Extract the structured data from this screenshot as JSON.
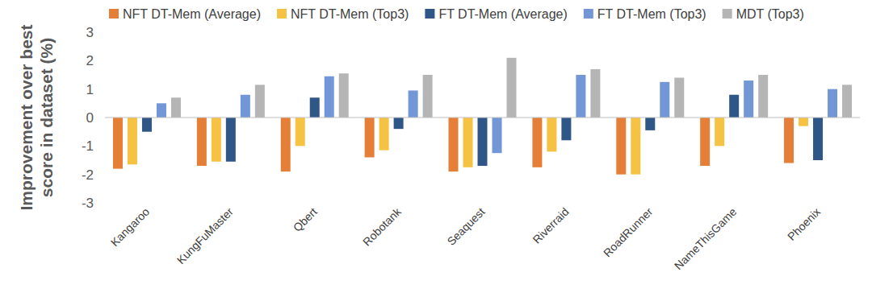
{
  "chart_data": {
    "type": "bar",
    "y_label": "Improvement over best score in dataset (%)",
    "categories": [
      "Kangaroo",
      "KungFuMaster",
      "Qbert",
      "Robotank",
      "Seaquest",
      "Riverraid",
      "RoadRunner",
      "NameThisGame",
      "Phoenix"
    ],
    "series": [
      {
        "name": "NFT DT-Mem (Average)",
        "color": "#e57f37",
        "values": [
          -1.8,
          -1.7,
          -1.9,
          -1.4,
          -1.9,
          -1.75,
          -2.0,
          -1.7,
          -1.6
        ]
      },
      {
        "name": "NFT DT-Mem (Top3)",
        "color": "#f6c243",
        "values": [
          -1.65,
          -1.55,
          -1.0,
          -1.15,
          -1.75,
          -1.2,
          -2.0,
          -1.0,
          -0.3
        ]
      },
      {
        "name": "FT DT-Mem (Average)",
        "color": "#2e5687",
        "values": [
          -0.5,
          -1.55,
          0.7,
          -0.4,
          -1.7,
          -0.8,
          -0.45,
          0.8,
          -1.5
        ]
      },
      {
        "name": "FT DT-Mem (Top3)",
        "color": "#7296d6",
        "values": [
          0.5,
          0.8,
          1.45,
          0.95,
          -1.25,
          1.5,
          1.25,
          1.3,
          1.0
        ]
      },
      {
        "name": "MDT (Top3)",
        "color": "#b5b5b5",
        "values": [
          0.7,
          1.15,
          1.55,
          1.5,
          2.1,
          1.7,
          1.4,
          1.5,
          1.15
        ]
      }
    ],
    "ylim": [
      -3,
      3
    ],
    "yticks": [
      -3,
      -2,
      -1,
      0,
      1,
      2,
      3
    ],
    "grid": false,
    "legend": "top"
  }
}
